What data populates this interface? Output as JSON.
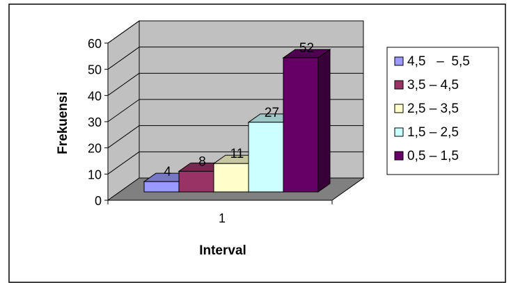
{
  "chart_data": {
    "type": "bar",
    "subtype": "3d-clustered-column",
    "categories": [
      "1"
    ],
    "series": [
      {
        "name": "4,5   –  5,5",
        "values": [
          4
        ],
        "color": "#9999FF"
      },
      {
        "name": "3,5 – 4,5",
        "values": [
          8
        ],
        "color": "#993366"
      },
      {
        "name": "2,5 – 3,5",
        "values": [
          11
        ],
        "color": "#FFFFCC"
      },
      {
        "name": "1,5 – 2,5",
        "values": [
          27
        ],
        "color": "#CCFFFF"
      },
      {
        "name": "0,5 – 1,5",
        "values": [
          52
        ],
        "color": "#660066"
      }
    ],
    "title": "",
    "xlabel": "Interval",
    "ylabel": "Frekuensi",
    "ylim": [
      0,
      60
    ],
    "yticks": [
      "0",
      "10",
      "20",
      "30",
      "40",
      "50",
      "60"
    ],
    "grid": true,
    "wall_color": "#C0C0C0",
    "floor_color": "#808080",
    "legend_position": "right",
    "data_labels": [
      "4",
      "8",
      "11",
      "27",
      "52"
    ]
  }
}
